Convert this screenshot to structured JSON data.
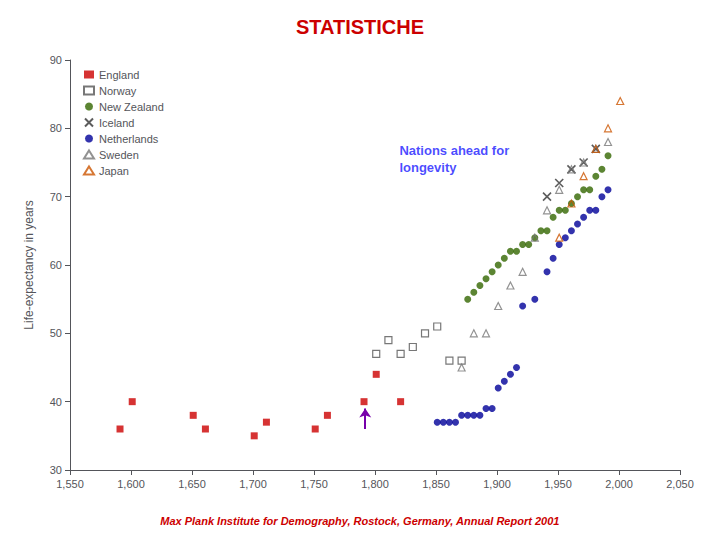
{
  "chart_data": {
    "type": "scatter",
    "title": "STATISTICHE",
    "ylabel": "Life-expectancy in years",
    "xlim": [
      1550,
      2050
    ],
    "ylim": [
      30,
      90
    ],
    "xticks": [
      1550,
      1600,
      1650,
      1700,
      1750,
      1800,
      1850,
      1900,
      1950,
      2000,
      2050
    ],
    "yticks": [
      30,
      40,
      50,
      60,
      70,
      80,
      90
    ],
    "grid": false,
    "legend": "upper left",
    "series": [
      {
        "name": "England",
        "color": "#cc0000",
        "marker": "square",
        "x": [
          1591,
          1601,
          1651,
          1661,
          1701,
          1711,
          1751,
          1761,
          1791,
          1801,
          1821
        ],
        "values": [
          36,
          40,
          38,
          36,
          35,
          37,
          36,
          38,
          40,
          44,
          40
        ]
      },
      {
        "name": "Norway",
        "color": "#555555",
        "marker": "square_open",
        "x": [
          1801,
          1811,
          1821,
          1831,
          1841,
          1851,
          1861,
          1871
        ],
        "values": [
          47,
          49,
          47,
          48,
          50,
          51,
          46,
          46
        ]
      },
      {
        "name": "New Zealand",
        "color": "#336600",
        "marker": "circle",
        "x": [
          1876,
          1881,
          1886,
          1891,
          1896,
          1901,
          1906,
          1911,
          1916,
          1921,
          1926,
          1931,
          1936,
          1941,
          1946,
          1951,
          1956,
          1961,
          1966,
          1971,
          1976,
          1981,
          1986,
          1991
        ],
        "values": [
          55,
          56,
          57,
          58,
          59,
          60,
          61,
          62,
          62,
          63,
          63,
          64,
          65,
          65,
          67,
          68,
          68,
          69,
          70,
          71,
          71,
          73,
          74,
          76
        ]
      },
      {
        "name": "Iceland",
        "color": "#333333",
        "marker": "x",
        "x": [
          1941,
          1951,
          1961,
          1971,
          1981
        ],
        "values": [
          70,
          72,
          74,
          75,
          77
        ]
      },
      {
        "name": "Netherlands",
        "color": "#000099",
        "marker": "circle",
        "x": [
          1851,
          1856,
          1861,
          1866,
          1871,
          1876,
          1881,
          1886,
          1891,
          1896,
          1901,
          1906,
          1911,
          1916,
          1921,
          1931,
          1941,
          1946,
          1951,
          1956,
          1961,
          1966,
          1971,
          1976,
          1981,
          1986,
          1991
        ],
        "values": [
          37,
          37,
          37,
          37,
          38,
          38,
          38,
          38,
          39,
          39,
          42,
          43,
          44,
          45,
          54,
          55,
          59,
          61,
          63,
          64,
          65,
          66,
          67,
          68,
          68,
          70,
          71
        ]
      },
      {
        "name": "Sweden",
        "color": "#777777",
        "marker": "triangle_open",
        "x": [
          1871,
          1881,
          1891,
          1901,
          1911,
          1921,
          1931,
          1941,
          1951,
          1961,
          1971,
          1981,
          1991
        ],
        "values": [
          45,
          50,
          50,
          54,
          57,
          59,
          64,
          68,
          71,
          74,
          75,
          77,
          78
        ]
      },
      {
        "name": "Japan",
        "color": "#cc5500",
        "marker": "triangle_open",
        "x": [
          1951,
          1961,
          1971,
          1981,
          1991,
          2001
        ],
        "values": [
          64,
          69,
          73,
          77,
          80,
          84
        ]
      }
    ],
    "annotations": [
      {
        "text": "Nations ahead for\nlongevity",
        "x": 1820,
        "y": 78
      }
    ],
    "arrow": {
      "x": 1792,
      "y": [
        36,
        39
      ]
    },
    "source": "Max Plank Institute for Demography, Rostock, Germany, Annual Report 2001"
  }
}
